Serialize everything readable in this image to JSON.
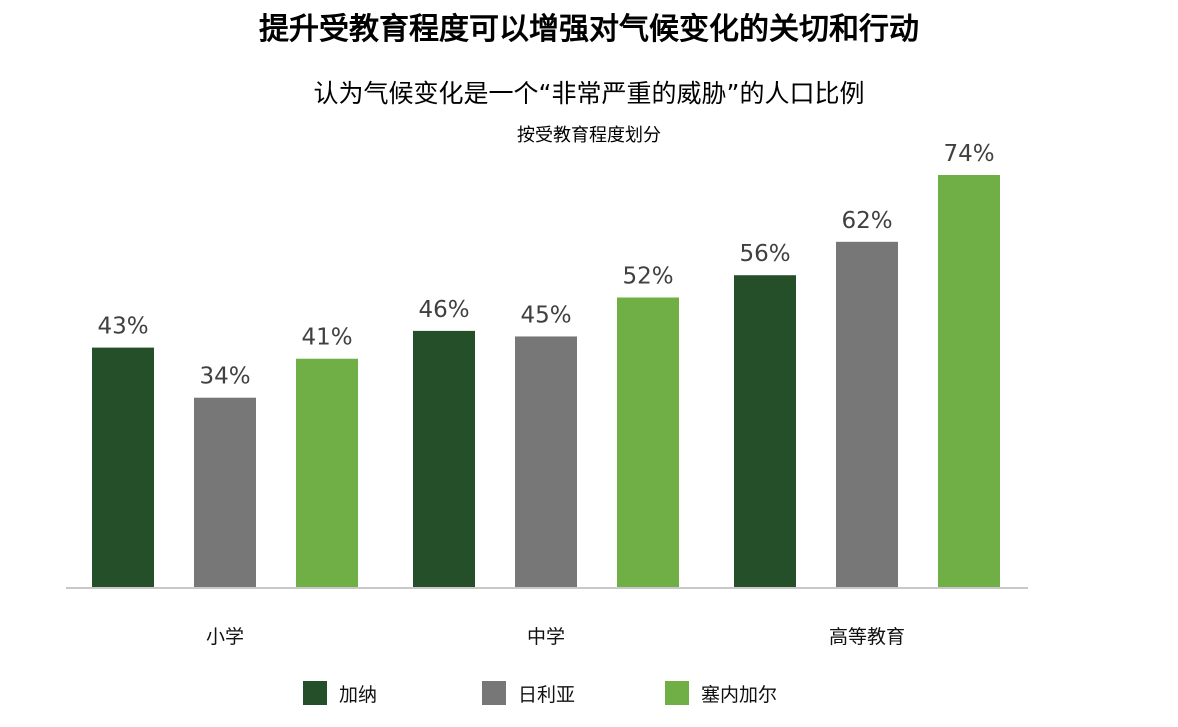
{
  "header": {
    "title": "提升受教育程度可以增强对气候变化的关切和行动",
    "subtitle": "认为气候变化是一个“非常严重的威胁”的人口比例",
    "subsubtitle": "按受教育程度划分"
  },
  "colors": {
    "canada": "#254f28",
    "nigeria": "#777777",
    "senegal": "#6faf46",
    "axis": "#c8c8c8"
  },
  "chart_data": {
    "type": "bar",
    "title": "提升受教育程度可以增强对气候变化的关切和行动",
    "subtitle": "认为气候变化是一个“非常严重的威胁”的人口比例",
    "note": "按受教育程度划分",
    "categories": [
      "小学",
      "中学",
      "高等教育"
    ],
    "series": [
      {
        "name": "加纳",
        "values": [
          43,
          46,
          56
        ],
        "labels": [
          "43%",
          "46%",
          "56%"
        ],
        "color": "#254f28"
      },
      {
        "name": "日利亚",
        "values": [
          34,
          45,
          62
        ],
        "labels": [
          "34%",
          "45%",
          "62%"
        ],
        "color": "#777777"
      },
      {
        "name": "塞内加尔",
        "values": [
          41,
          52,
          74
        ],
        "labels": [
          "41%",
          "52%",
          "74%"
        ],
        "color": "#6faf46"
      }
    ],
    "unit": "%",
    "ylim": [
      0,
      74
    ],
    "grid": false,
    "legend_position": "bottom"
  }
}
